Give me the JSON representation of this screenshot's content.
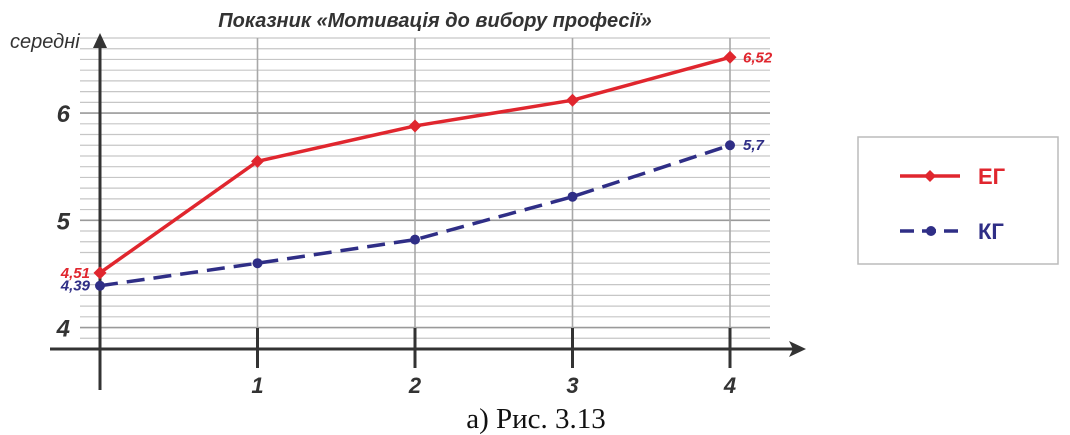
{
  "chart_data": {
    "type": "line",
    "title": "Показник «Мотивація до вибору професії»",
    "ylabel": "середні",
    "xlabel": "",
    "categories": [
      "",
      "1",
      "2",
      "3",
      "4"
    ],
    "x": [
      0,
      1,
      2,
      3,
      4
    ],
    "ylim": [
      3.8,
      6.7
    ],
    "yticks": [
      "4",
      "5",
      "6"
    ],
    "grid": true,
    "legend_position": "right",
    "series": [
      {
        "name": "ЕГ",
        "values": [
          4.51,
          5.55,
          5.88,
          6.12,
          6.52
        ],
        "color": "#e0262e",
        "style": "solid",
        "marker": "diamond",
        "labels": [
          "4,51",
          "",
          "",
          "",
          "6,52"
        ]
      },
      {
        "name": "КГ",
        "values": [
          4.39,
          4.6,
          4.82,
          5.22,
          5.7
        ],
        "color": "#2f2e86",
        "style": "dashed",
        "marker": "circle",
        "labels": [
          "4,39",
          "",
          "",
          "",
          "5,7"
        ]
      }
    ]
  },
  "caption": "а) Рис. 3.13"
}
